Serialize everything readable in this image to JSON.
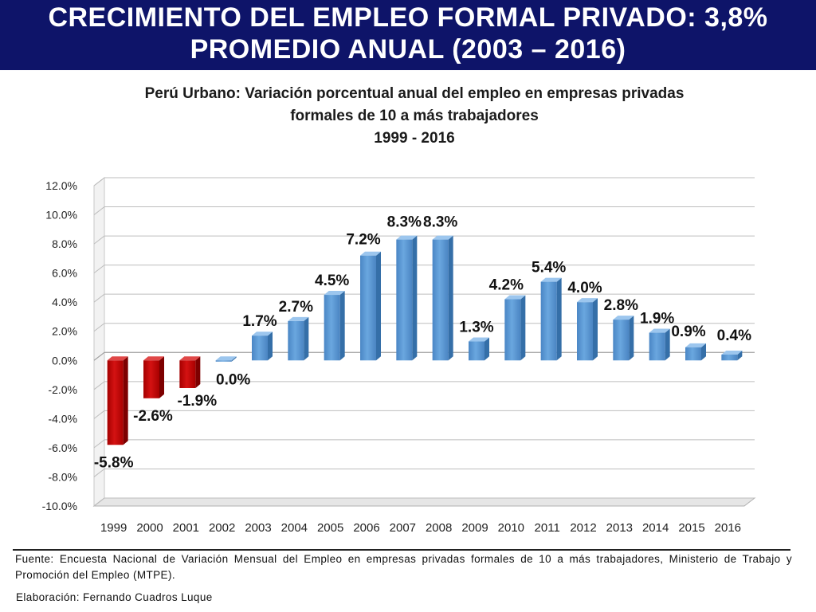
{
  "header": {
    "line1": "CRECIMIENTO DEL EMPLEO FORMAL PRIVADO: 3,8%",
    "line2": "PROMEDIO ANUAL (2003 – 2016)"
  },
  "chart_data": {
    "type": "bar",
    "title": [
      "Perú Urbano: Variación porcentual anual del empleo en empresas privadas",
      "formales de 10 a más trabajadores",
      "1999 - 2016"
    ],
    "categories": [
      "1999",
      "2000",
      "2001",
      "2002",
      "2003",
      "2004",
      "2005",
      "2006",
      "2007",
      "2008",
      "2009",
      "2010",
      "2011",
      "2012",
      "2013",
      "2014",
      "2015",
      "2016"
    ],
    "values": [
      -5.8,
      -2.6,
      -1.9,
      0.0,
      1.7,
      2.7,
      4.5,
      7.2,
      8.3,
      8.3,
      1.3,
      4.2,
      5.4,
      4.0,
      2.8,
      1.9,
      0.9,
      0.4
    ],
    "data_labels": [
      "-5.8%",
      "-2.6%",
      "-1.9%",
      "0.0%",
      "1.7%",
      "2.7%",
      "4.5%",
      "7.2%",
      "8.3%",
      "8.3%",
      "1.3%",
      "4.2%",
      "5.4%",
      "4.0%",
      "2.8%",
      "1.9%",
      "0.9%",
      "0.4%"
    ],
    "y_ticks": [
      "12.0%",
      "10.0%",
      "8.0%",
      "6.0%",
      "4.0%",
      "2.0%",
      "0.0%",
      "-2.0%",
      "-4.0%",
      "-6.0%",
      "-8.0%",
      "-10.0%"
    ],
    "ylim": [
      -10,
      12
    ],
    "grid": true,
    "xlabel": "",
    "ylabel": "",
    "colors": {
      "positive": "#5b9bd5",
      "negative": "#c00000"
    }
  },
  "footer": {
    "source": "Fuente: Encuesta Nacional de Variación Mensual del Empleo en empresas privadas formales de 10 a más trabajadores, Ministerio de Trabajo y Promoción del Empleo (MTPE).",
    "credit": "Elaboración: Fernando Cuadros Luque"
  }
}
